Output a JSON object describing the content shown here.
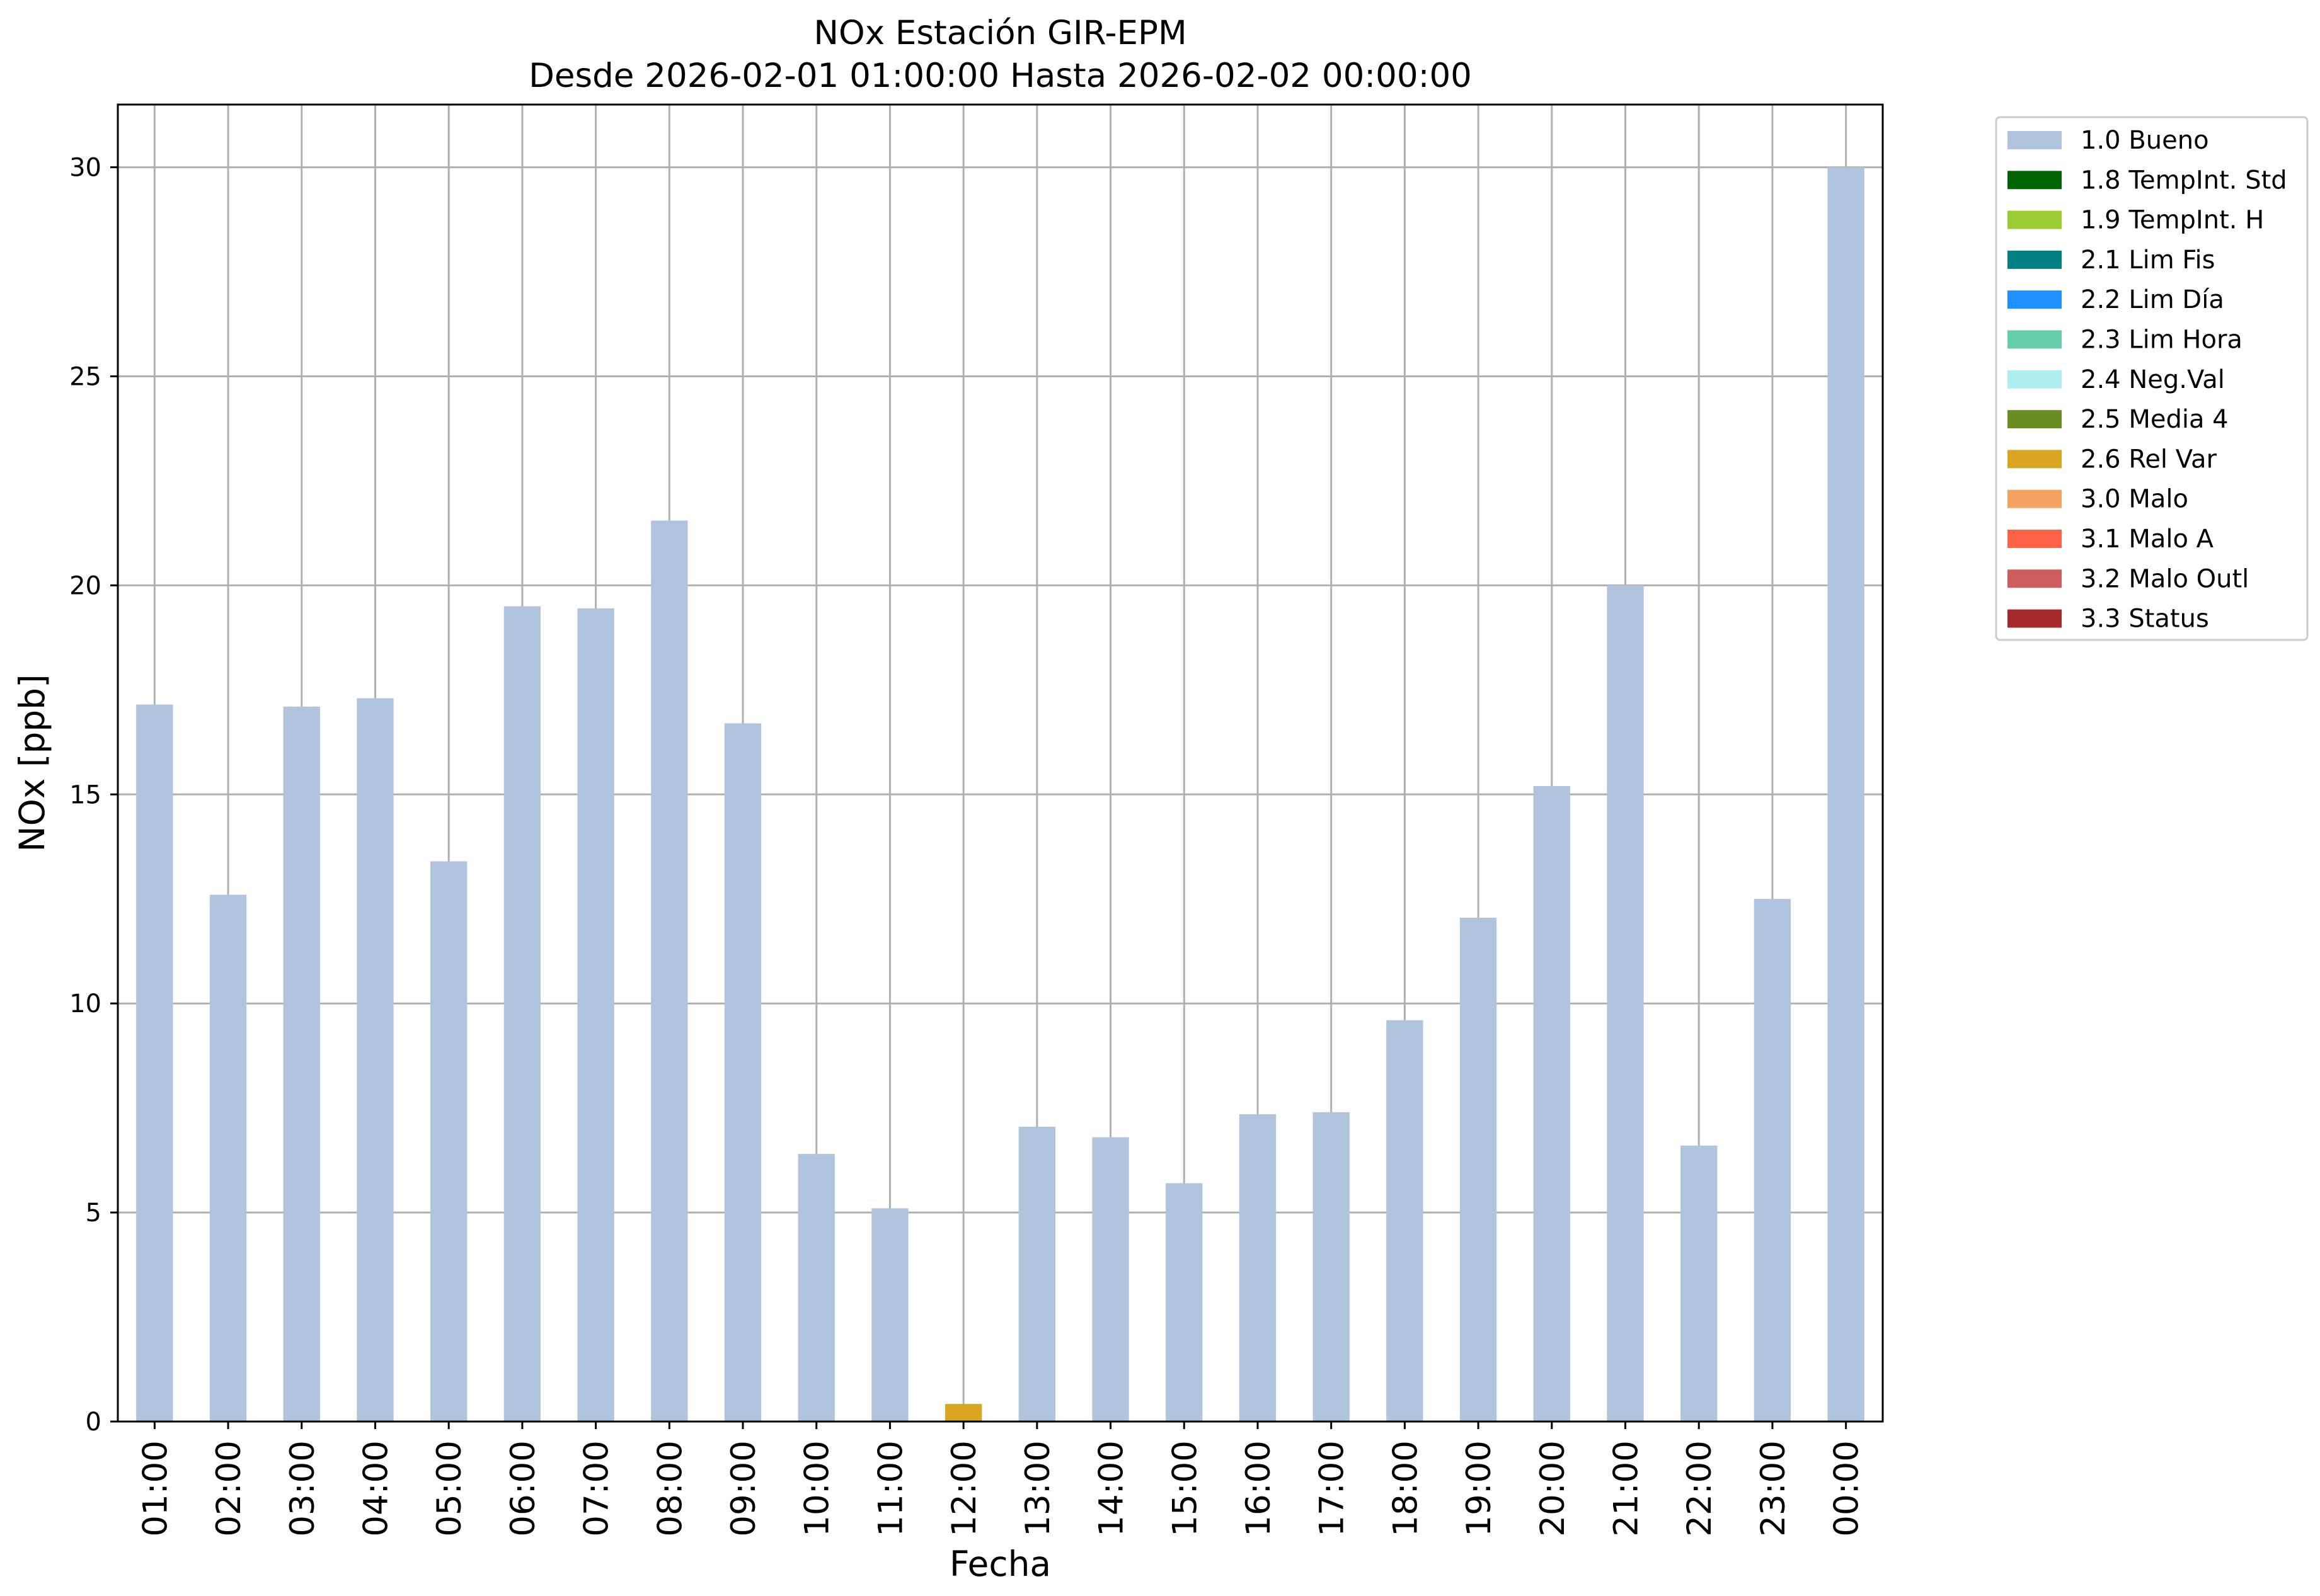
{
  "chart_data": {
    "type": "bar",
    "title": "NOx Estación GIR-EPM",
    "subtitle": "Desde 2026-02-01 01:00:00 Hasta 2026-02-02 00:00:00",
    "xlabel": "Fecha",
    "ylabel": "NOx [ppb]",
    "ylim": [
      0,
      31.5
    ],
    "yticks": [
      0,
      5,
      10,
      15,
      20,
      25,
      30
    ],
    "grid": true,
    "legend_position": "outside-top-right",
    "categories": [
      "01:00",
      "02:00",
      "03:00",
      "04:00",
      "05:00",
      "06:00",
      "07:00",
      "08:00",
      "09:00",
      "10:00",
      "11:00",
      "12:00",
      "13:00",
      "14:00",
      "15:00",
      "16:00",
      "17:00",
      "18:00",
      "19:00",
      "20:00",
      "21:00",
      "22:00",
      "23:00",
      "00:00"
    ],
    "series": [
      {
        "name": "1.0 Bueno",
        "color": "#b0c4de",
        "values": [
          17.15,
          12.6,
          17.1,
          17.3,
          13.4,
          19.5,
          19.45,
          21.55,
          16.7,
          6.4,
          5.1,
          null,
          7.05,
          6.8,
          5.7,
          7.35,
          7.4,
          9.6,
          12.05,
          15.2,
          20.0,
          6.6,
          12.5,
          30.0
        ]
      },
      {
        "name": "2.6 Rel Var",
        "color": "#daa520",
        "values": [
          null,
          null,
          null,
          null,
          null,
          null,
          null,
          null,
          null,
          null,
          null,
          0.42,
          null,
          null,
          null,
          null,
          null,
          null,
          null,
          null,
          null,
          null,
          null,
          null
        ]
      }
    ],
    "legend": [
      {
        "label": "1.0 Bueno",
        "color": "#b0c4de"
      },
      {
        "label": "1.8 TempInt. Std",
        "color": "#006400"
      },
      {
        "label": "1.9 TempInt. H",
        "color": "#9acd32"
      },
      {
        "label": "2.1 Lim Fis",
        "color": "#008080"
      },
      {
        "label": "2.2 Lim Día",
        "color": "#1e90ff"
      },
      {
        "label": "2.3 Lim Hora",
        "color": "#66cdaa"
      },
      {
        "label": "2.4 Neg.Val",
        "color": "#afeeee"
      },
      {
        "label": "2.5 Media 4",
        "color": "#6b8e23"
      },
      {
        "label": "2.6 Rel Var",
        "color": "#daa520"
      },
      {
        "label": "3.0 Malo",
        "color": "#f4a460"
      },
      {
        "label": "3.1 Malo A",
        "color": "#ff6347"
      },
      {
        "label": "3.2 Malo Outl",
        "color": "#cd5c5c"
      },
      {
        "label": "3.3 Status",
        "color": "#a52a2a"
      }
    ]
  }
}
